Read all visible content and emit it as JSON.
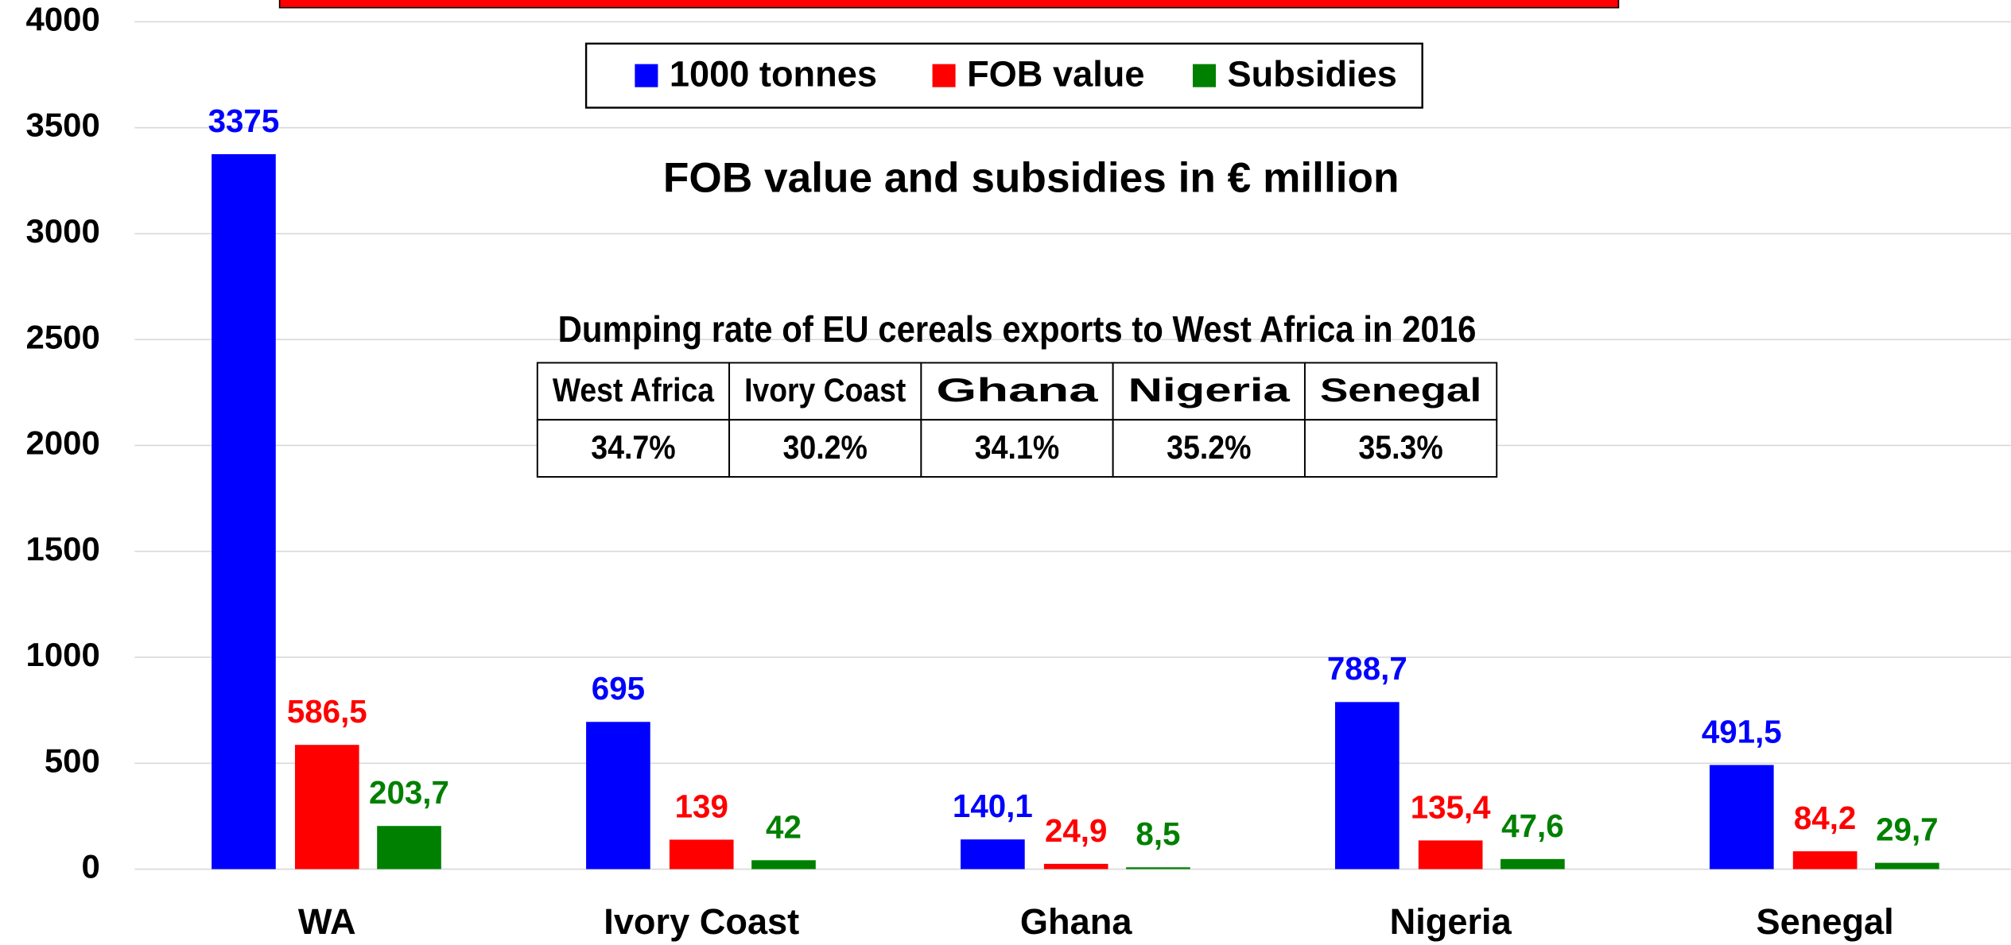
{
  "chart_data": {
    "type": "bar",
    "annotation": "FOB value and subsidies in € million",
    "categories": [
      "WA",
      "Ivory Coast",
      "Ghana",
      "Nigeria",
      "Senegal"
    ],
    "series": [
      {
        "name": "1000 tonnes",
        "color": "#0000ff",
        "values": [
          3375,
          695,
          140.1,
          788.7,
          491.5
        ],
        "value_labels": [
          "3375",
          "695",
          "140,1",
          "788,7",
          "491,5"
        ]
      },
      {
        "name": "FOB value",
        "color": "#ff0000",
        "values": [
          586.5,
          139,
          24.9,
          135.4,
          84.2
        ],
        "value_labels": [
          "586,5",
          "139",
          "24,9",
          "135,4",
          "84,2"
        ]
      },
      {
        "name": "Subsidies",
        "color": "#008000",
        "values": [
          203.7,
          42,
          8.5,
          47.6,
          29.7
        ],
        "value_labels": [
          "203,7",
          "42",
          "8,5",
          "47,6",
          "29,7"
        ]
      }
    ],
    "ylim": [
      0,
      4000
    ],
    "yticks": [
      0,
      500,
      1000,
      1500,
      2000,
      2500,
      3000,
      3500,
      4000
    ],
    "grid": true,
    "legend": "top",
    "table": {
      "title": "Dumping rate of EU cereals exports to West Africa in 2016",
      "header": [
        "West Africa",
        "Ivory Coast",
        "Ghana",
        "Nigeria",
        "Senegal"
      ],
      "rows": [
        [
          "34.7%",
          "30.2%",
          "34.1%",
          "35.2%",
          "35.3%"
        ]
      ]
    }
  }
}
